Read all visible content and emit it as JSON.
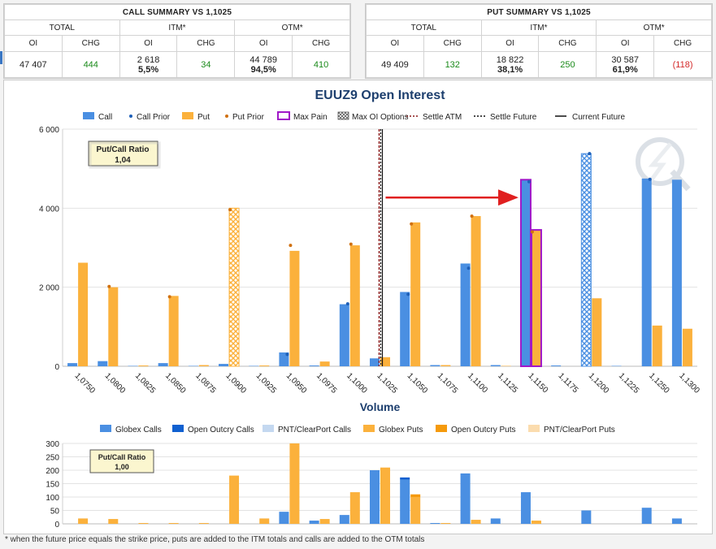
{
  "call_summary": {
    "title": "CALL SUMMARY VS 1,1025",
    "groups": [
      "TOTAL",
      "ITM*",
      "OTM*"
    ],
    "col_headers": [
      "OI",
      "CHG",
      "OI",
      "CHG",
      "OI",
      "CHG"
    ],
    "total_oi": "47 407",
    "total_chg": "444",
    "itm_oi": "2 618",
    "itm_pct": "5,5%",
    "itm_chg": "34",
    "otm_oi": "44 789",
    "otm_pct": "94,5%",
    "otm_chg": "410"
  },
  "put_summary": {
    "title": "PUT SUMMARY VS 1,1025",
    "groups": [
      "TOTAL",
      "ITM*",
      "OTM*"
    ],
    "col_headers": [
      "OI",
      "CHG",
      "OI",
      "CHG",
      "OI",
      "CHG"
    ],
    "total_oi": "49 409",
    "total_chg": "132",
    "itm_oi": "18 822",
    "itm_pct": "38,1%",
    "itm_chg": "250",
    "otm_oi": "30 587",
    "otm_pct": "61,9%",
    "otm_chg": "(118)"
  },
  "colors": {
    "call": "#4a8fe2",
    "put": "#fbb13c",
    "max_pain": "#a018c8",
    "settle_atm": "#8b1a1a",
    "arrow": "#e02020",
    "positive": "#1a8a1a",
    "negative": "#d42a2a"
  },
  "footnote": "* when the future price equals the strike price, puts are added to the ITM totals and calls are added to the OTM totals",
  "chart_data": [
    {
      "type": "bar",
      "title": "EUUZ9 Open Interest",
      "legend": [
        "Call",
        "Call Prior",
        "Put",
        "Put Prior",
        "Max Pain",
        "Max OI Options",
        "Settle ATM",
        "Settle Future",
        "Current Future"
      ],
      "legend_position": "top",
      "categories": [
        "1,0750",
        "1,0800",
        "1,0825",
        "1,0850",
        "1,0875",
        "1,0900",
        "1,0925",
        "1,0950",
        "1,0975",
        "1,1000",
        "1,1025",
        "1,1050",
        "1,1075",
        "1,1100",
        "1,1125",
        "1,1150",
        "1,1175",
        "1,1200",
        "1,1225",
        "1,1250",
        "1,1300"
      ],
      "series": [
        {
          "name": "Call",
          "values": [
            80,
            130,
            10,
            80,
            10,
            60,
            10,
            350,
            20,
            1570,
            200,
            1880,
            30,
            2600,
            30,
            4720,
            20,
            5380,
            10,
            4750,
            4720
          ]
        },
        {
          "name": "Call Prior",
          "values": [
            null,
            null,
            null,
            null,
            null,
            null,
            null,
            300,
            null,
            1580,
            null,
            1820,
            null,
            2480,
            null,
            4670,
            null,
            5380,
            null,
            4730,
            null
          ]
        },
        {
          "name": "Put",
          "values": [
            2620,
            2000,
            20,
            1780,
            30,
            4000,
            20,
            2920,
            120,
            3060,
            230,
            3640,
            30,
            3800,
            10,
            3450,
            0,
            1720,
            0,
            1030,
            950
          ]
        },
        {
          "name": "Put Prior",
          "values": [
            null,
            2020,
            null,
            1760,
            null,
            3960,
            null,
            3060,
            null,
            3090,
            null,
            3600,
            null,
            3800,
            null,
            3400,
            null,
            null,
            null,
            null,
            null
          ]
        }
      ],
      "max_pain_strike": "1,1150",
      "max_oi_call_strike": "1,1200",
      "max_oi_put_strike": "1,0900",
      "settle_atm": "1,1025",
      "settle_future": 1.1025,
      "current_future": 1.1027,
      "ylim": [
        0,
        6000
      ],
      "yticks": [
        "0",
        "2 000",
        "4 000",
        "6 000"
      ],
      "grid": true,
      "ratio_label": "Put/Call Ratio",
      "ratio_value": "1,04"
    },
    {
      "type": "bar",
      "title": "Volume",
      "legend": [
        "Globex Calls",
        "Open Outcry Calls",
        "PNT/ClearPort Calls",
        "Globex Puts",
        "Open Outcry Puts",
        "PNT/ClearPort Puts"
      ],
      "legend_position": "top",
      "categories": [
        "1,0750",
        "1,0800",
        "1,0825",
        "1,0850",
        "1,0875",
        "1,0900",
        "1,0925",
        "1,0950",
        "1,0975",
        "1,1000",
        "1,1025",
        "1,1050",
        "1,1075",
        "1,1100",
        "1,1125",
        "1,1150",
        "1,1175",
        "1,1200",
        "1,1225",
        "1,1250",
        "1,1300"
      ],
      "series": [
        {
          "name": "Globex Calls",
          "values": [
            0,
            0,
            0,
            0,
            0,
            0,
            0,
            45,
            12,
            33,
            200,
            165,
            3,
            188,
            20,
            118,
            0,
            50,
            0,
            60,
            20
          ]
        },
        {
          "name": "Open Outcry Calls",
          "values": [
            0,
            0,
            0,
            0,
            0,
            0,
            0,
            0,
            0,
            0,
            0,
            8,
            0,
            0,
            0,
            0,
            0,
            0,
            0,
            0,
            0
          ]
        },
        {
          "name": "Globex Puts",
          "values": [
            20,
            18,
            3,
            3,
            3,
            180,
            20,
            300,
            18,
            118,
            210,
            100,
            3,
            15,
            0,
            12,
            0,
            0,
            0,
            0,
            0
          ]
        },
        {
          "name": "Open Outcry Puts",
          "values": [
            0,
            0,
            0,
            0,
            0,
            0,
            0,
            0,
            0,
            0,
            0,
            10,
            0,
            0,
            0,
            0,
            0,
            0,
            0,
            0,
            0
          ]
        }
      ],
      "ylim": [
        0,
        300
      ],
      "yticks": [
        "0",
        "50",
        "100",
        "150",
        "200",
        "250",
        "300"
      ],
      "grid": true,
      "ratio_label": "Put/Call Ratio",
      "ratio_value": "1,00"
    }
  ]
}
